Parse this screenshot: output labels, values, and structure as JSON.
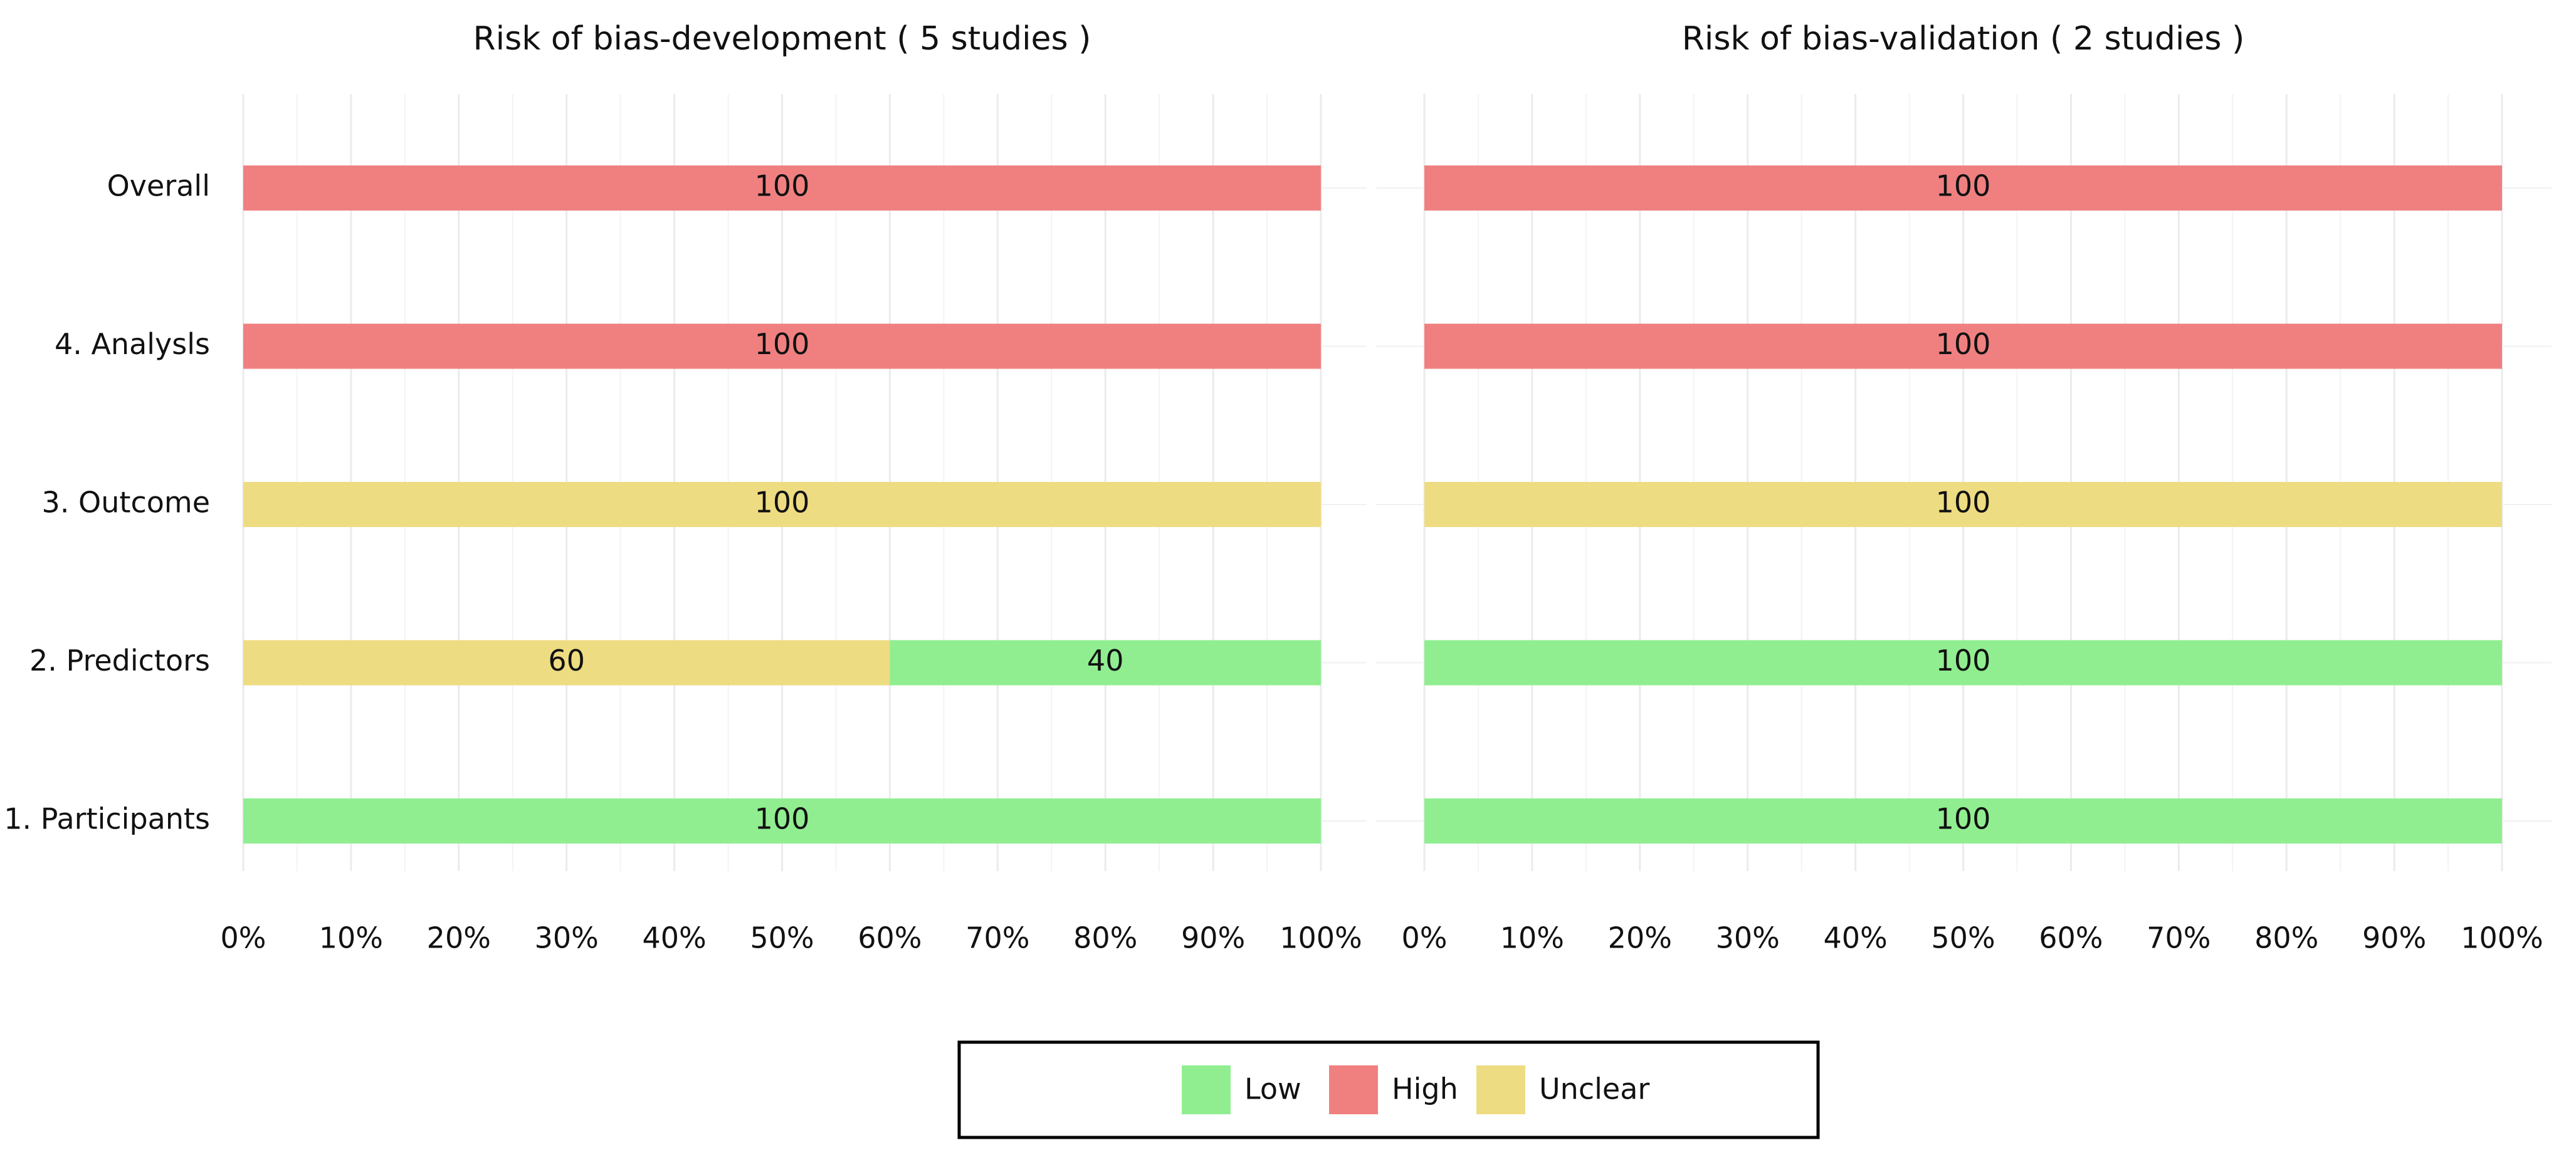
{
  "chart_data": [
    {
      "type": "bar",
      "orientation": "horizontal",
      "stacked": true,
      "title": "Risk of bias-development ( 5 studies )",
      "categories": [
        "Overall",
        "4. Analysls",
        "3. Outcome",
        "2. Predictors",
        "1. Participants"
      ],
      "series": [
        {
          "name": "Low",
          "color": "#90ee90",
          "values": [
            0,
            0,
            0,
            40,
            100
          ]
        },
        {
          "name": "High",
          "color": "#f08080",
          "values": [
            100,
            100,
            0,
            0,
            0
          ]
        },
        {
          "name": "Unclear",
          "color": "#eedc82",
          "values": [
            0,
            0,
            100,
            60,
            0
          ]
        }
      ],
      "xlim": [
        0,
        100
      ],
      "xticks": [
        {
          "value": 0,
          "label": "0%"
        },
        {
          "value": 10,
          "label": "10%"
        },
        {
          "value": 20,
          "label": "20%"
        },
        {
          "value": 30,
          "label": "30%"
        },
        {
          "value": 40,
          "label": "40%"
        },
        {
          "value": 50,
          "label": "50%"
        },
        {
          "value": 60,
          "label": "60%"
        },
        {
          "value": 70,
          "label": "70%"
        },
        {
          "value": 80,
          "label": "80%"
        },
        {
          "value": 90,
          "label": "90%"
        },
        {
          "value": 100,
          "label": "100%"
        }
      ],
      "grid": true,
      "legend": "bottom"
    },
    {
      "type": "bar",
      "orientation": "horizontal",
      "stacked": true,
      "title": "Risk of bias-validation ( 2 studies )",
      "categories": [
        "Overall",
        "4. Analysls",
        "3. Outcome",
        "2. Predictors",
        "1. Participants"
      ],
      "series": [
        {
          "name": "Low",
          "color": "#90ee90",
          "values": [
            0,
            0,
            0,
            100,
            100
          ]
        },
        {
          "name": "High",
          "color": "#f08080",
          "values": [
            100,
            100,
            0,
            0,
            0
          ]
        },
        {
          "name": "Unclear",
          "color": "#eedc82",
          "values": [
            0,
            0,
            100,
            0,
            0
          ]
        }
      ],
      "xlim": [
        0,
        100
      ],
      "xticks": [
        {
          "value": 0,
          "label": "0%"
        },
        {
          "value": 10,
          "label": "10%"
        },
        {
          "value": 20,
          "label": "20%"
        },
        {
          "value": 30,
          "label": "30%"
        },
        {
          "value": 40,
          "label": "40%"
        },
        {
          "value": 50,
          "label": "50%"
        },
        {
          "value": 60,
          "label": "60%"
        },
        {
          "value": 70,
          "label": "70%"
        },
        {
          "value": 80,
          "label": "80%"
        },
        {
          "value": 90,
          "label": "90%"
        },
        {
          "value": 100,
          "label": "100%"
        }
      ],
      "grid": true,
      "legend": "bottom"
    }
  ]
}
